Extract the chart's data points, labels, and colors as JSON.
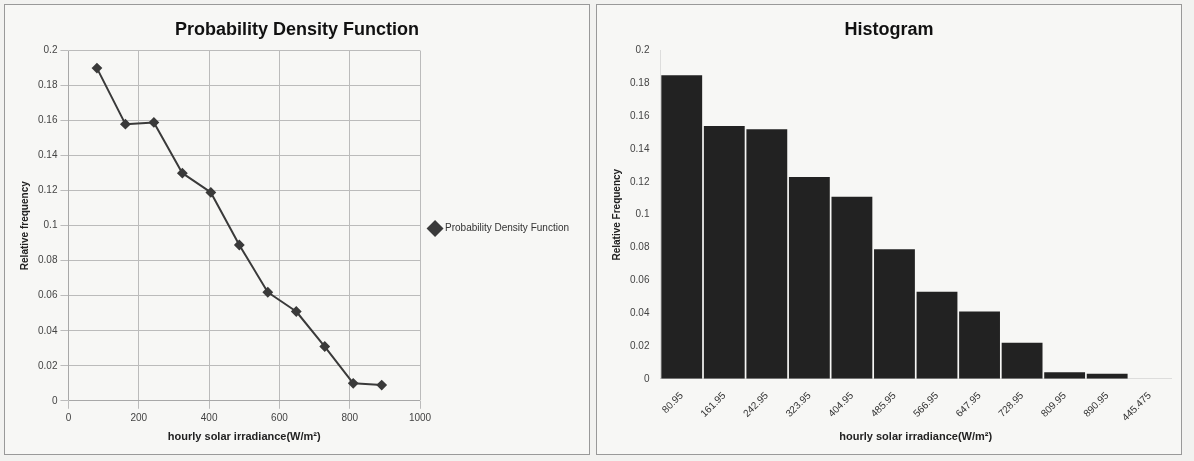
{
  "chart_data": [
    {
      "type": "line",
      "title": "Probability Density Function",
      "xlabel": "hourly solar irradiance(W/m²)",
      "ylabel": "Relative frequency",
      "x": [
        80.95,
        161.95,
        242.95,
        323.95,
        404.95,
        485.95,
        566.95,
        647.95,
        728.95,
        809.95,
        890.95
      ],
      "xlim": [
        0,
        1000
      ],
      "xticks": [
        0,
        200,
        400,
        600,
        800,
        1000
      ],
      "ylim": [
        0,
        0.2
      ],
      "yticks": [
        0,
        0.02,
        0.04,
        0.06,
        0.08,
        0.1,
        0.12,
        0.14,
        0.16,
        0.18,
        0.2
      ],
      "grid": true,
      "legend": "right",
      "marker": "diamond",
      "line_style": "solid",
      "series": [
        {
          "name": "Probability Density Function",
          "color": "#3a3a3a",
          "values": [
            0.19,
            0.158,
            0.159,
            0.13,
            0.119,
            0.089,
            0.062,
            0.051,
            0.031,
            0.01,
            0.009
          ]
        }
      ]
    },
    {
      "type": "bar",
      "title": "Histogram",
      "xlabel": "hourly solar irradiance(W/m²)",
      "ylabel": "Relative Frequency",
      "categories": [
        "80.95",
        "161.95",
        "242.95",
        "323.95",
        "404.95",
        "485.95",
        "566.95",
        "647.95",
        "728.95",
        "809.95",
        "890.95",
        "445.475"
      ],
      "ylim": [
        0,
        0.2
      ],
      "yticks": [
        0,
        0.02,
        0.04,
        0.06,
        0.08,
        0.1,
        0.12,
        0.14,
        0.16,
        0.18,
        0.2
      ],
      "grid": false,
      "legend": false,
      "series": [
        {
          "color": "#222222",
          "values": [
            0.185,
            0.154,
            0.152,
            0.123,
            0.111,
            0.079,
            0.053,
            0.041,
            0.022,
            0.004,
            0.003,
            0
          ]
        }
      ]
    }
  ]
}
